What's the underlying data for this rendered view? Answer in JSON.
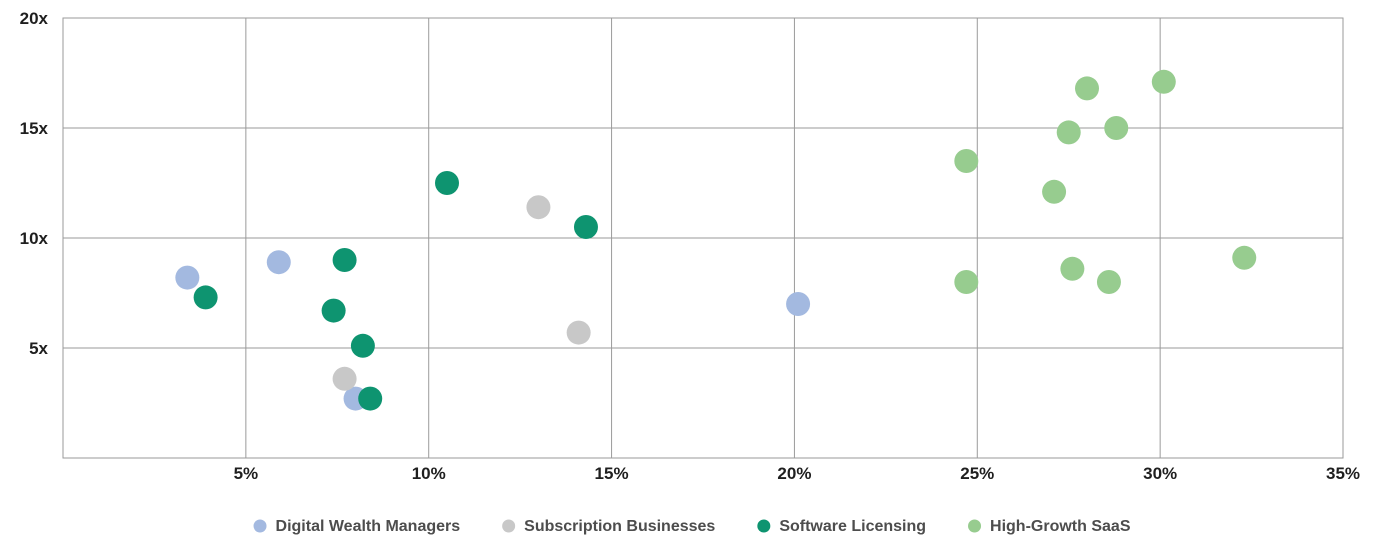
{
  "chart_data": {
    "type": "scatter",
    "title": "",
    "xlabel": "",
    "ylabel": "",
    "xlim": [
      0,
      35
    ],
    "ylim": [
      0,
      20
    ],
    "x_ticks": [
      {
        "value": 5,
        "label": "5%"
      },
      {
        "value": 10,
        "label": "10%"
      },
      {
        "value": 15,
        "label": "15%"
      },
      {
        "value": 20,
        "label": "20%"
      },
      {
        "value": 25,
        "label": "25%"
      },
      {
        "value": 30,
        "label": "30%"
      },
      {
        "value": 35,
        "label": "35%"
      }
    ],
    "y_ticks": [
      {
        "value": 5,
        "label": "5x"
      },
      {
        "value": 10,
        "label": "10x"
      },
      {
        "value": 15,
        "label": "15x"
      },
      {
        "value": 20,
        "label": "20x"
      }
    ],
    "grid": true,
    "legend_position": "bottom",
    "series": [
      {
        "name": "Digital Wealth Managers",
        "color": "#a3b9e0",
        "points": [
          {
            "x": 3.4,
            "y": 8.2
          },
          {
            "x": 5.9,
            "y": 8.9
          },
          {
            "x": 8.0,
            "y": 2.7
          },
          {
            "x": 20.1,
            "y": 7.0
          }
        ]
      },
      {
        "name": "Subscription Businesses",
        "color": "#c8c8c8",
        "points": [
          {
            "x": 7.7,
            "y": 3.6
          },
          {
            "x": 13.0,
            "y": 11.4
          },
          {
            "x": 14.1,
            "y": 5.7
          }
        ]
      },
      {
        "name": "Software Licensing",
        "color": "#0e9470",
        "points": [
          {
            "x": 3.9,
            "y": 7.3
          },
          {
            "x": 7.4,
            "y": 6.7
          },
          {
            "x": 7.7,
            "y": 9.0
          },
          {
            "x": 8.2,
            "y": 5.1
          },
          {
            "x": 8.4,
            "y": 2.7
          },
          {
            "x": 10.5,
            "y": 12.5
          },
          {
            "x": 14.3,
            "y": 10.5
          }
        ]
      },
      {
        "name": "High-Growth SaaS",
        "color": "#97cc8f",
        "points": [
          {
            "x": 24.7,
            "y": 13.5
          },
          {
            "x": 24.7,
            "y": 8.0
          },
          {
            "x": 27.1,
            "y": 12.1
          },
          {
            "x": 27.5,
            "y": 14.8
          },
          {
            "x": 27.6,
            "y": 8.6
          },
          {
            "x": 28.0,
            "y": 16.8
          },
          {
            "x": 28.6,
            "y": 8.0
          },
          {
            "x": 28.8,
            "y": 15.0
          },
          {
            "x": 30.1,
            "y": 17.1
          },
          {
            "x": 32.3,
            "y": 9.1
          }
        ]
      }
    ]
  }
}
